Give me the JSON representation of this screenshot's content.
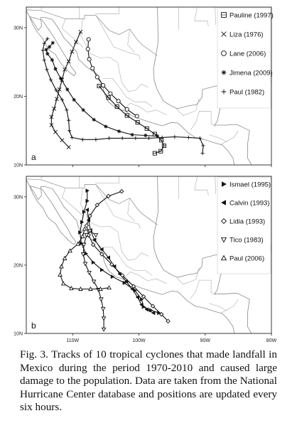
{
  "panels": [
    {
      "id": "a",
      "label": "a",
      "lat_ticks": [
        "30N",
        "20N",
        "10N"
      ],
      "legend": [
        {
          "name": "Pauline (1997)",
          "symbol": "square"
        },
        {
          "name": "Liza (1976)",
          "symbol": "x"
        },
        {
          "name": "Lane (2006)",
          "symbol": "circle"
        },
        {
          "name": "Jimena (2009)",
          "symbol": "star"
        },
        {
          "name": "Paul (1982)",
          "symbol": "plus"
        }
      ],
      "tracks": [
        {
          "name": "Pauline (1997)",
          "symbol": "square",
          "points": [
            [
              -106.0,
              21.5
            ],
            [
              -104.6,
              19.8
            ],
            [
              -103.3,
              18.5
            ],
            [
              -101.8,
              17.2
            ],
            [
              -100.2,
              16.2
            ],
            [
              -98.8,
              15.3
            ],
            [
              -97.6,
              14.5
            ],
            [
              -96.6,
              13.6
            ],
            [
              -96.2,
              12.8
            ],
            [
              -96.7,
              12.0
            ],
            [
              -97.6,
              11.7
            ]
          ]
        },
        {
          "name": "Liza (1976)",
          "symbol": "x",
          "points": [
            [
              -108.8,
              29.4
            ],
            [
              -109.5,
              27.9
            ],
            [
              -110.1,
              26.5
            ],
            [
              -110.6,
              25.1
            ],
            [
              -111.2,
              23.9
            ],
            [
              -111.6,
              22.4
            ],
            [
              -112.0,
              21.0
            ],
            [
              -112.4,
              19.6
            ],
            [
              -112.8,
              18.2
            ],
            [
              -113.2,
              17.0
            ],
            [
              -113.2,
              15.8
            ],
            [
              -112.6,
              14.8
            ],
            [
              -111.6,
              13.6
            ],
            [
              -110.6,
              12.6
            ]
          ]
        },
        {
          "name": "Lane (2006)",
          "symbol": "circle",
          "points": [
            [
              -107.6,
              28.3
            ],
            [
              -107.7,
              26.9
            ],
            [
              -107.5,
              25.4
            ],
            [
              -107.0,
              24.1
            ],
            [
              -106.3,
              22.8
            ],
            [
              -105.4,
              21.6
            ],
            [
              -104.3,
              20.4
            ],
            [
              -103.1,
              19.3
            ],
            [
              -101.8,
              18.1
            ],
            [
              -100.3,
              17.1
            ]
          ]
        },
        {
          "name": "Jimena (2009)",
          "symbol": "star",
          "points": [
            [
              -113.0,
              27.8
            ],
            [
              -113.5,
              27.2
            ],
            [
              -114.0,
              26.8
            ],
            [
              -113.8,
              26.2
            ],
            [
              -113.1,
              25.3
            ],
            [
              -112.6,
              24.0
            ],
            [
              -111.8,
              22.6
            ],
            [
              -110.8,
              21.0
            ],
            [
              -109.8,
              19.5
            ],
            [
              -108.4,
              18.0
            ],
            [
              -106.8,
              16.6
            ],
            [
              -105.0,
              15.6
            ],
            [
              -103.0,
              14.9
            ],
            [
              -101.0,
              14.4
            ],
            [
              -99.0,
              14.3
            ],
            [
              -97.2,
              14.2
            ]
          ]
        },
        {
          "name": "Paul (1982)",
          "symbol": "plus",
          "points": [
            [
              -113.8,
              28.4
            ],
            [
              -114.3,
              27.7
            ],
            [
              -114.5,
              26.7
            ],
            [
              -114.3,
              25.3
            ],
            [
              -113.9,
              23.9
            ],
            [
              -113.3,
              22.4
            ],
            [
              -112.5,
              20.9
            ],
            [
              -111.6,
              19.5
            ],
            [
              -110.9,
              18.0
            ],
            [
              -110.6,
              16.5
            ],
            [
              -110.5,
              15.0
            ],
            [
              -110.1,
              14.0
            ],
            [
              -108.5,
              13.7
            ],
            [
              -106.5,
              13.7
            ],
            [
              -104.5,
              13.9
            ],
            [
              -102.5,
              13.9
            ],
            [
              -100.5,
              13.9
            ],
            [
              -98.5,
              13.9
            ],
            [
              -96.5,
              14.0
            ],
            [
              -94.6,
              14.1
            ],
            [
              -92.5,
              14.0
            ],
            [
              -90.8,
              13.9
            ],
            [
              -90.3,
              12.8
            ],
            [
              -90.4,
              11.7
            ]
          ]
        }
      ]
    },
    {
      "id": "b",
      "label": "b",
      "lat_ticks": [
        "30N",
        "20N",
        "10N"
      ],
      "lon_ticks": [
        "110W",
        "100W",
        "90W",
        "80W"
      ],
      "legend": [
        {
          "name": "Ismael (1995)",
          "symbol": "tri-right"
        },
        {
          "name": "Calvin (1993)",
          "symbol": "tri-left"
        },
        {
          "name": "Lidia (1993)",
          "symbol": "diamond"
        },
        {
          "name": "Tico (1983)",
          "symbol": "tri-down"
        },
        {
          "name": "Paul (2006)",
          "symbol": "tri-up"
        }
      ],
      "tracks": [
        {
          "name": "Ismael (1995)",
          "symbol": "tri-right",
          "points": [
            [
              -107.8,
              30.9
            ],
            [
              -107.8,
              29.4
            ],
            [
              -108.3,
              27.8
            ],
            [
              -108.6,
              26.3
            ],
            [
              -108.9,
              24.8
            ],
            [
              -108.7,
              23.2
            ],
            [
              -108.0,
              21.7
            ],
            [
              -106.9,
              20.4
            ],
            [
              -105.6,
              19.3
            ],
            [
              -104.0,
              18.3
            ],
            [
              -102.2,
              17.4
            ],
            [
              -100.6,
              16.3
            ],
            [
              -99.6,
              15.0
            ],
            [
              -99.3,
              13.9
            ],
            [
              -98.2,
              13.4
            ],
            [
              -97.0,
              13.0
            ]
          ]
        },
        {
          "name": "Calvin (1993)",
          "symbol": "tri-left",
          "points": [
            [
              -107.8,
              28.1
            ],
            [
              -107.6,
              26.6
            ],
            [
              -107.3,
              25.1
            ],
            [
              -106.7,
              23.7
            ],
            [
              -105.6,
              22.3
            ],
            [
              -104.6,
              21.1
            ],
            [
              -103.7,
              19.8
            ],
            [
              -102.9,
              18.7
            ],
            [
              -101.9,
              17.6
            ],
            [
              -101.0,
              16.5
            ],
            [
              -100.2,
              15.3
            ],
            [
              -99.6,
              14.2
            ],
            [
              -98.8,
              13.5
            ],
            [
              -97.8,
              13.0
            ]
          ]
        },
        {
          "name": "Lidia (1993)",
          "symbol": "diamond",
          "points": [
            [
              -102.6,
              30.8
            ],
            [
              -104.6,
              30.1
            ],
            [
              -106.3,
              28.8
            ],
            [
              -107.4,
              27.2
            ],
            [
              -107.9,
              25.8
            ],
            [
              -107.6,
              24.4
            ],
            [
              -106.9,
              23.0
            ],
            [
              -105.6,
              21.6
            ],
            [
              -104.1,
              20.1
            ],
            [
              -102.5,
              18.5
            ],
            [
              -100.8,
              16.9
            ],
            [
              -99.3,
              15.4
            ],
            [
              -97.9,
              14.0
            ],
            [
              -96.6,
              12.8
            ],
            [
              -95.6,
              11.8
            ]
          ]
        },
        {
          "name": "Tico (1983)",
          "symbol": "tri-down",
          "points": [
            [
              -106.5,
              24.4
            ],
            [
              -107.4,
              25.0
            ],
            [
              -107.9,
              24.4
            ],
            [
              -108.3,
              23.0
            ],
            [
              -108.4,
              21.6
            ],
            [
              -108.1,
              20.2
            ],
            [
              -107.5,
              18.9
            ],
            [
              -106.8,
              17.6
            ],
            [
              -106.1,
              16.4
            ],
            [
              -105.7,
              15.0
            ],
            [
              -105.4,
              13.6
            ],
            [
              -105.3,
              12.2
            ],
            [
              -105.3,
              10.6
            ]
          ]
        },
        {
          "name": "Paul (2006)",
          "symbol": "tri-up",
          "points": [
            [
              -108.2,
              25.3
            ],
            [
              -108.5,
              24.2
            ],
            [
              -109.2,
              23.1
            ],
            [
              -110.4,
              22.1
            ],
            [
              -111.2,
              21.0
            ],
            [
              -111.7,
              19.8
            ],
            [
              -111.9,
              18.6
            ],
            [
              -111.4,
              17.3
            ],
            [
              -110.2,
              16.6
            ],
            [
              -108.8,
              16.5
            ],
            [
              -107.3,
              16.5
            ],
            [
              -105.8,
              16.5
            ],
            [
              -104.5,
              16.7
            ]
          ]
        }
      ]
    }
  ],
  "caption": "Fig. 3. Tracks of 10 tropical cyclones that made landfall in Mexico during the period 1970-2010 and caused large damage to the population. Data are taken from the National Hurricane Center database and positions are updated every six hours."
}
